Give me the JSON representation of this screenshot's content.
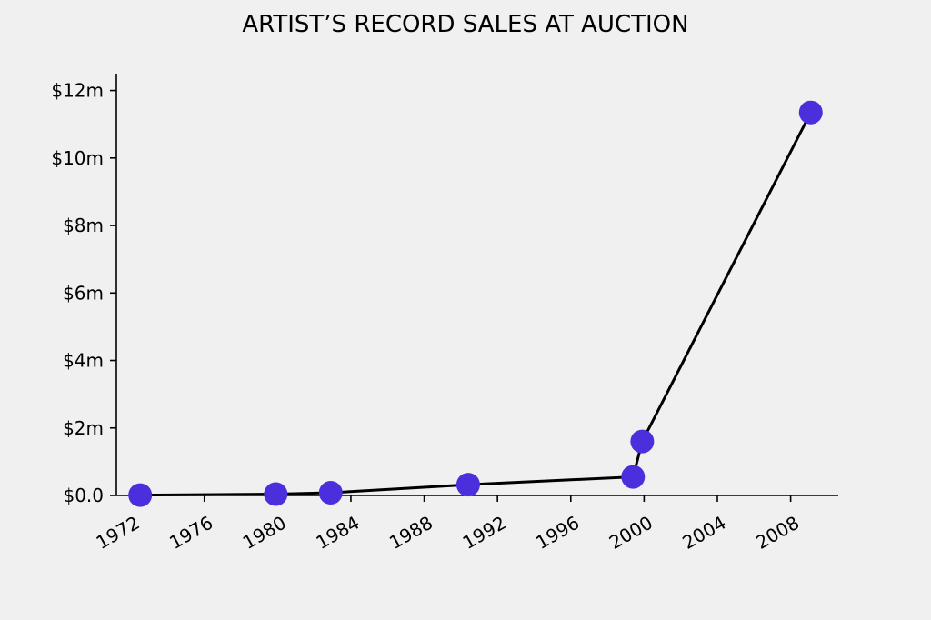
{
  "chart_data": {
    "type": "line",
    "title": "ARTIST’S RECORD SALES AT AUCTION",
    "xlabel": "",
    "ylabel": "",
    "xlim": [
      1971.2,
      2010.6
    ],
    "ylim": [
      0,
      12500000
    ],
    "x_ticks": [
      {
        "value": 1972,
        "label": "1972"
      },
      {
        "value": 1976,
        "label": "1976"
      },
      {
        "value": 1980,
        "label": "1980"
      },
      {
        "value": 1984,
        "label": "1984"
      },
      {
        "value": 1988,
        "label": "1988"
      },
      {
        "value": 1992,
        "label": "1992"
      },
      {
        "value": 1996,
        "label": "1996"
      },
      {
        "value": 2000,
        "label": "2000"
      },
      {
        "value": 2004,
        "label": "2004"
      },
      {
        "value": 2008,
        "label": "2008"
      }
    ],
    "y_ticks": [
      {
        "value": 0,
        "label": "$0.0"
      },
      {
        "value": 2000000,
        "label": "$2m"
      },
      {
        "value": 4000000,
        "label": "$4m"
      },
      {
        "value": 6000000,
        "label": "$6m"
      },
      {
        "value": 8000000,
        "label": "$8m"
      },
      {
        "value": 10000000,
        "label": "$10m"
      },
      {
        "value": 12000000,
        "label": "$12m"
      }
    ],
    "grid": false,
    "series": [
      {
        "color": "#4b2fdc",
        "line_color": "#000000",
        "points": [
          {
            "x": 1972.5,
            "y": 10000
          },
          {
            "x": 1979.9,
            "y": 40000
          },
          {
            "x": 1982.9,
            "y": 80000
          },
          {
            "x": 1990.4,
            "y": 320000
          },
          {
            "x": 1999.4,
            "y": 550000
          },
          {
            "x": 1999.9,
            "y": 1600000
          },
          {
            "x": 2009.1,
            "y": 11350000
          }
        ]
      }
    ]
  }
}
